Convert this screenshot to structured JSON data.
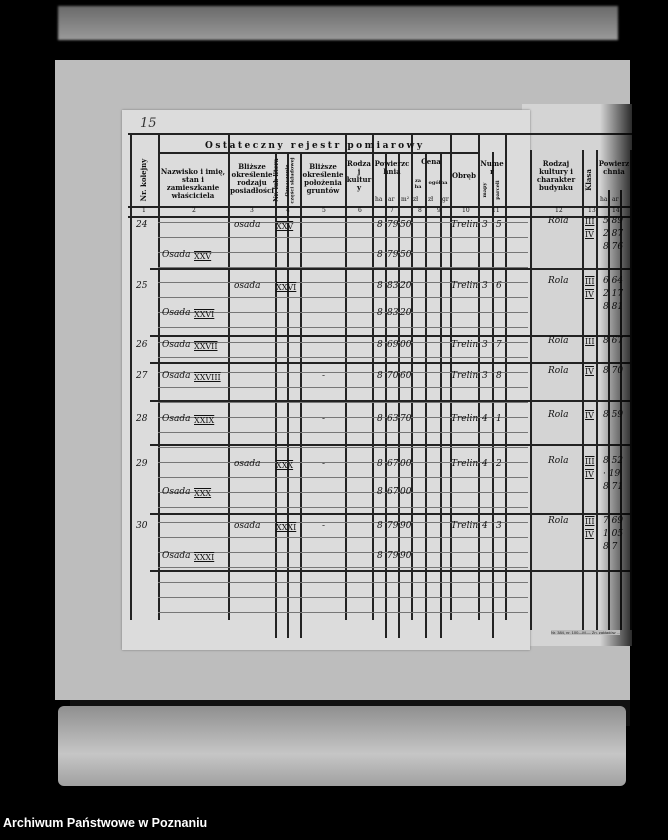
{
  "footer": "Archiwum Państwowe w Poznaniu",
  "page_number": "15",
  "register": {
    "title": "Ostateczny rejestr pomiarowy",
    "columns": [
      {
        "n": "1",
        "label": "Nr. kolejny"
      },
      {
        "n": "2",
        "label": "Nazwisko i imię, stan i zamieszkanie właściciela"
      },
      {
        "n": "3",
        "label": "Bliższe określenie rodzaju posiadłości"
      },
      {
        "n": "4",
        "label": "Nr. lub litera",
        "sub": "Oznaczenie części składowej"
      },
      {
        "n": "5",
        "label": "Bliższe określenie położenia gruntów"
      },
      {
        "n": "6",
        "label": "Rodzaj kultury"
      },
      {
        "n": "7",
        "label": "Powierzchnia",
        "units": [
          "ha",
          "ar",
          "m²"
        ]
      },
      {
        "n": "8",
        "label": "Cena",
        "sub": "za ha",
        "units": [
          "zł"
        ]
      },
      {
        "n": "9",
        "label": "ogólna",
        "units": [
          "zł",
          "gr"
        ]
      },
      {
        "n": "10",
        "label": "Obręb"
      },
      {
        "n": "11",
        "label": "Numer",
        "units": [
          "mapy",
          "parceli"
        ]
      }
    ],
    "rows": [
      {
        "nr": "24",
        "kind": "osada",
        "part": "XXV",
        "area": [
          "8",
          "79",
          "50"
        ],
        "obreb": "Trelin",
        "map": "3",
        "parcel": "5"
      },
      {
        "owner": "Osada",
        "owner_num": "XXV",
        "area": [
          "8",
          "79",
          "50"
        ]
      },
      {
        "nr": "25",
        "kind": "osada",
        "part": "XXVI",
        "area": [
          "8",
          "83",
          "20"
        ],
        "obreb": "Trelin",
        "map": "3",
        "parcel": "6"
      },
      {
        "owner": "Osada",
        "owner_num": "XXVI",
        "area": [
          "8",
          "83",
          "20"
        ]
      },
      {
        "nr": "26",
        "owner": "Osada",
        "owner_num": "XXVII",
        "area": [
          "8",
          "69",
          "00"
        ],
        "obreb": "Trelin",
        "map": "3",
        "parcel": "7"
      },
      {
        "nr": "27",
        "owner": "Osada",
        "owner_num": "XXVIII",
        "mark": "-",
        "area": [
          "8",
          "70",
          "60"
        ],
        "obreb": "Trelin",
        "map": "3",
        "parcel": "8"
      },
      {
        "nr": "28",
        "owner": "Osada",
        "owner_num": "XXIX",
        "mark": "-",
        "area": [
          "8",
          "63",
          "70"
        ],
        "obreb": "Trelin",
        "map": "4",
        "parcel": "1"
      },
      {
        "nr": "29",
        "kind": "osada",
        "part": "XXX",
        "mark": "-",
        "area": [
          "8",
          "67",
          "00"
        ],
        "obreb": "Trelin",
        "map": "4",
        "parcel": "2"
      },
      {
        "owner": "Osada",
        "owner_num": "XXX",
        "area": [
          "8",
          "67",
          "00"
        ]
      },
      {
        "nr": "30",
        "kind": "osada",
        "part": "XXXI",
        "mark": "-",
        "area": [
          "8",
          "79",
          "90"
        ],
        "obreb": "Trelin",
        "map": "4",
        "parcel": "3"
      },
      {
        "owner": "Osada",
        "owner_num": "XXXI",
        "area": [
          "8",
          "79",
          "90"
        ]
      }
    ]
  },
  "register_right": {
    "columns": [
      {
        "n": "12",
        "label": "Rodzaj kultury i charakter budynku"
      },
      {
        "n": "13",
        "label": "Klasa"
      },
      {
        "n": "14",
        "label": "Powierzchnia",
        "units": [
          "ha",
          "ar",
          "m²"
        ]
      }
    ],
    "rows": [
      {
        "culture": "Rola",
        "classes": [
          "III",
          "IV"
        ],
        "areas": [
          "5 89",
          "2 87",
          "8 76"
        ]
      },
      {
        "culture": "Rola",
        "classes": [
          "III",
          "IV"
        ],
        "areas": [
          "6 64",
          "2 17",
          "8 81"
        ]
      },
      {
        "culture": "Rola",
        "classes": [
          "III"
        ],
        "areas": [
          "8 67"
        ]
      },
      {
        "culture": "Rola",
        "classes": [
          "IV"
        ],
        "areas": [
          "8 70"
        ]
      },
      {
        "culture": "Rola",
        "classes": [
          "IV"
        ],
        "areas": [
          "8 59"
        ]
      },
      {
        "culture": "Rola",
        "classes": [
          "III",
          "IV"
        ],
        "areas": [
          "8 52",
          "· 19",
          "8 71"
        ]
      },
      {
        "culture": "Rola",
        "classes": [
          "III",
          "IV"
        ],
        "areas": [
          "7 69",
          "1 05",
          "8 7"
        ]
      }
    ],
    "print_note": "Nr. 384, nr. 100—M.— Zn. zakładów ..."
  }
}
